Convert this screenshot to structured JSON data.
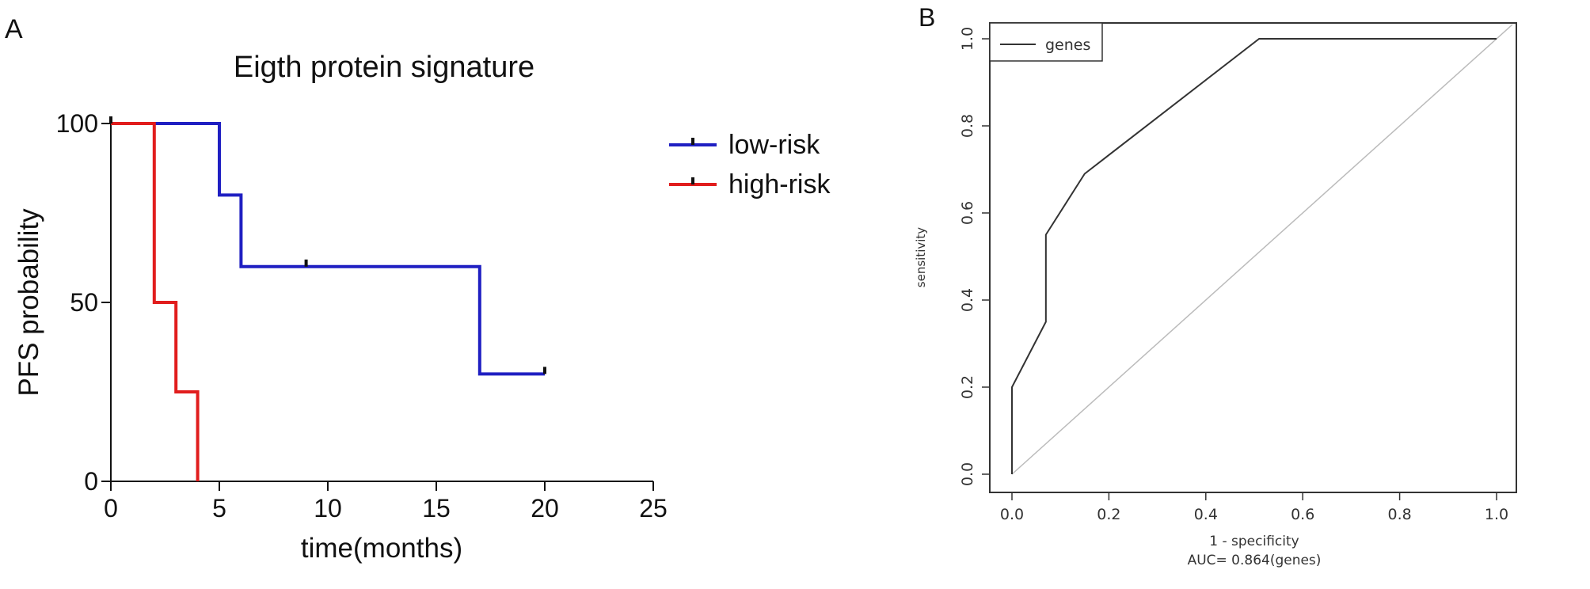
{
  "chart_data": [
    {
      "type": "line",
      "subtype": "kaplan-meier",
      "panel_label": "A",
      "title": "Eigth protein signature",
      "xlabel": "time(months)",
      "ylabel": "PFS probability",
      "xlim": [
        0,
        25
      ],
      "ylim": [
        0,
        100
      ],
      "xticks": [
        0,
        5,
        10,
        15,
        20,
        25
      ],
      "yticks": [
        0,
        50,
        100
      ],
      "legend_position": "right",
      "series": [
        {
          "name": "low-risk",
          "color": "#1f1fc2",
          "steps": [
            [
              0,
              100
            ],
            [
              5,
              80
            ],
            [
              6,
              60
            ],
            [
              17,
              30
            ],
            [
              20,
              30
            ]
          ],
          "censored": [
            [
              9,
              60
            ],
            [
              20,
              30
            ]
          ]
        },
        {
          "name": "high-risk",
          "color": "#e11d1d",
          "steps": [
            [
              0,
              100
            ],
            [
              2,
              50
            ],
            [
              3,
              25
            ],
            [
              4,
              0
            ]
          ],
          "censored": [
            [
              0,
              100
            ]
          ]
        }
      ]
    },
    {
      "type": "line",
      "subtype": "roc",
      "panel_label": "B",
      "xlabel": "1 - specificity",
      "ylabel": "sensitivity",
      "annotation": "AUC= 0.864(genes)",
      "xlim": [
        0,
        1
      ],
      "ylim": [
        0,
        1
      ],
      "xticks": [
        "0.0",
        "0.2",
        "0.4",
        "0.6",
        "0.8",
        "1.0"
      ],
      "yticks": [
        "0.0",
        "0.2",
        "0.4",
        "0.6",
        "0.8",
        "1.0"
      ],
      "legend_position": "top-left",
      "series": [
        {
          "name": "genes",
          "color": "#333333",
          "x": [
            0,
            0,
            0.07,
            0.07,
            0.15,
            0.51,
            1.0
          ],
          "y": [
            0,
            0.2,
            0.35,
            0.55,
            0.69,
            1.0,
            1.0
          ]
        }
      ],
      "reference_line": {
        "x": [
          0,
          1
        ],
        "y": [
          0,
          1
        ],
        "color": "#bbbbbb"
      }
    }
  ]
}
